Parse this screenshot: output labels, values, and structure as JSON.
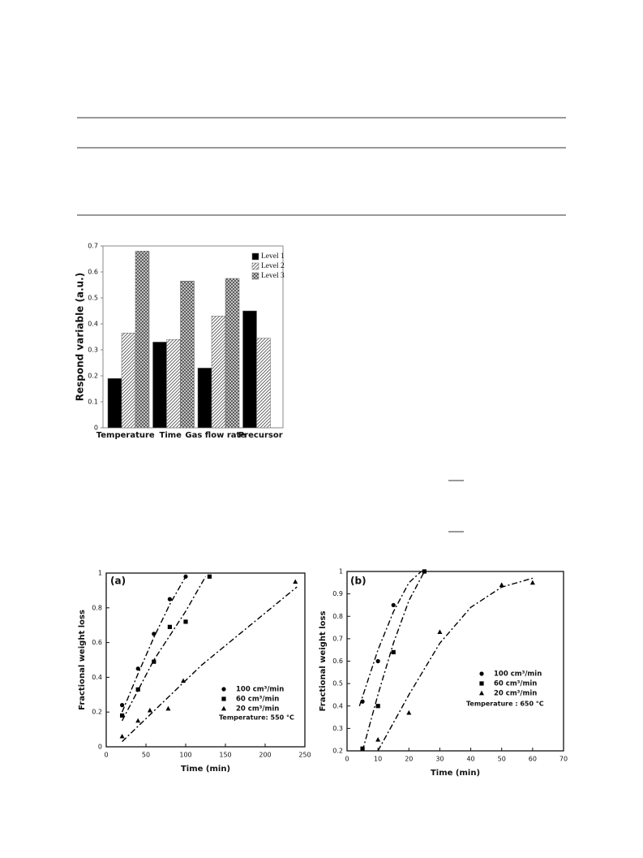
{
  "chart_data": [
    {
      "type": "bar",
      "ylabel": "Respond variable (a.u.)",
      "categories": [
        "Temperature",
        "Time",
        "Gas flow rate",
        "Precursor"
      ],
      "series": [
        {
          "name": "Level 1",
          "color": "#000000",
          "pattern": "solid",
          "values": [
            0.19,
            0.33,
            0.23,
            0.45
          ]
        },
        {
          "name": "Level 2",
          "color": "#555555",
          "pattern": "diagonal",
          "values": [
            0.365,
            0.34,
            0.43,
            0.345
          ]
        },
        {
          "name": "Level 3",
          "color": "#555555",
          "pattern": "crosshatch",
          "values": [
            0.68,
            0.565,
            0.575,
            null
          ]
        }
      ],
      "ylim": [
        0,
        0.7
      ],
      "yticks": [
        0,
        0.1,
        0.2,
        0.3,
        0.4,
        0.5,
        0.6,
        0.7
      ],
      "legend": "top-right"
    },
    {
      "type": "scatter",
      "panel_label": "(a)",
      "xlabel": "Time (min)",
      "ylabel": "Fractional weight loss",
      "annotation": "Temperature: 550 °C",
      "xlim": [
        0,
        250
      ],
      "xticks": [
        0,
        50,
        100,
        150,
        200,
        250
      ],
      "ylim": [
        0,
        1
      ],
      "yticks": [
        0,
        0.2,
        0.4,
        0.6,
        0.8,
        1
      ],
      "series": [
        {
          "name": "100 cm³/min",
          "color": "#000000",
          "marker": "circle",
          "x": [
            20,
            40,
            60,
            80,
            100
          ],
          "values": [
            0.24,
            0.45,
            0.65,
            0.85,
            0.98
          ],
          "fit": {
            "x": [
              20,
              40,
              60,
              80,
              100
            ],
            "y": [
              0.2,
              0.42,
              0.63,
              0.82,
              0.98
            ]
          }
        },
        {
          "name": "60 cm³/min",
          "color": "#000000",
          "marker": "square",
          "x": [
            20,
            40,
            60,
            80,
            100,
            130
          ],
          "values": [
            0.18,
            0.33,
            0.49,
            0.69,
            0.72,
            0.98
          ],
          "fit": {
            "x": [
              20,
              60,
              100,
              125
            ],
            "y": [
              0.15,
              0.5,
              0.78,
              0.98
            ]
          }
        },
        {
          "name": "20 cm³/min",
          "color": "#000000",
          "marker": "triangle",
          "x": [
            20,
            40,
            55,
            78,
            97,
            238
          ],
          "values": [
            0.06,
            0.15,
            0.21,
            0.22,
            0.38,
            0.95
          ],
          "fit": {
            "x": [
              20,
              120,
              240
            ],
            "y": [
              0.03,
              0.47,
              0.92
            ]
          }
        }
      ]
    },
    {
      "type": "scatter",
      "panel_label": "(b)",
      "xlabel": "Time (min)",
      "ylabel": "Fractional weight loss",
      "annotation": "Temperature : 650 °C",
      "xlim": [
        0,
        70
      ],
      "xticks": [
        0,
        10,
        20,
        30,
        40,
        50,
        60,
        70
      ],
      "ylim": [
        0.2,
        1
      ],
      "yticks": [
        0.2,
        0.3,
        0.4,
        0.5,
        0.6,
        0.7,
        0.8,
        0.9,
        1
      ],
      "series": [
        {
          "name": "100 cm³/min",
          "color": "#000000",
          "marker": "circle",
          "x": [
            5,
            10,
            15,
            25
          ],
          "values": [
            0.42,
            0.6,
            0.85,
            1
          ],
          "fit": {
            "x": [
              4,
              10,
              15,
              20,
              24
            ],
            "y": [
              0.4,
              0.65,
              0.82,
              0.95,
              1
            ]
          }
        },
        {
          "name": "60 cm³/min",
          "color": "#000000",
          "marker": "square",
          "x": [
            5,
            10,
            15,
            25
          ],
          "values": [
            0.21,
            0.4,
            0.64,
            1
          ],
          "fit": {
            "x": [
              5,
              10,
              15,
              20,
              25
            ],
            "y": [
              0.2,
              0.45,
              0.68,
              0.87,
              1
            ]
          }
        },
        {
          "name": "20 cm³/min",
          "color": "#000000",
          "marker": "triangle",
          "x": [
            10,
            20,
            30,
            50,
            60
          ],
          "values": [
            0.25,
            0.37,
            0.73,
            0.94,
            0.95
          ],
          "fit": {
            "x": [
              10,
              20,
              30,
              40,
              50,
              60
            ],
            "y": [
              0.2,
              0.45,
              0.68,
              0.84,
              0.93,
              0.97
            ]
          }
        }
      ]
    }
  ]
}
